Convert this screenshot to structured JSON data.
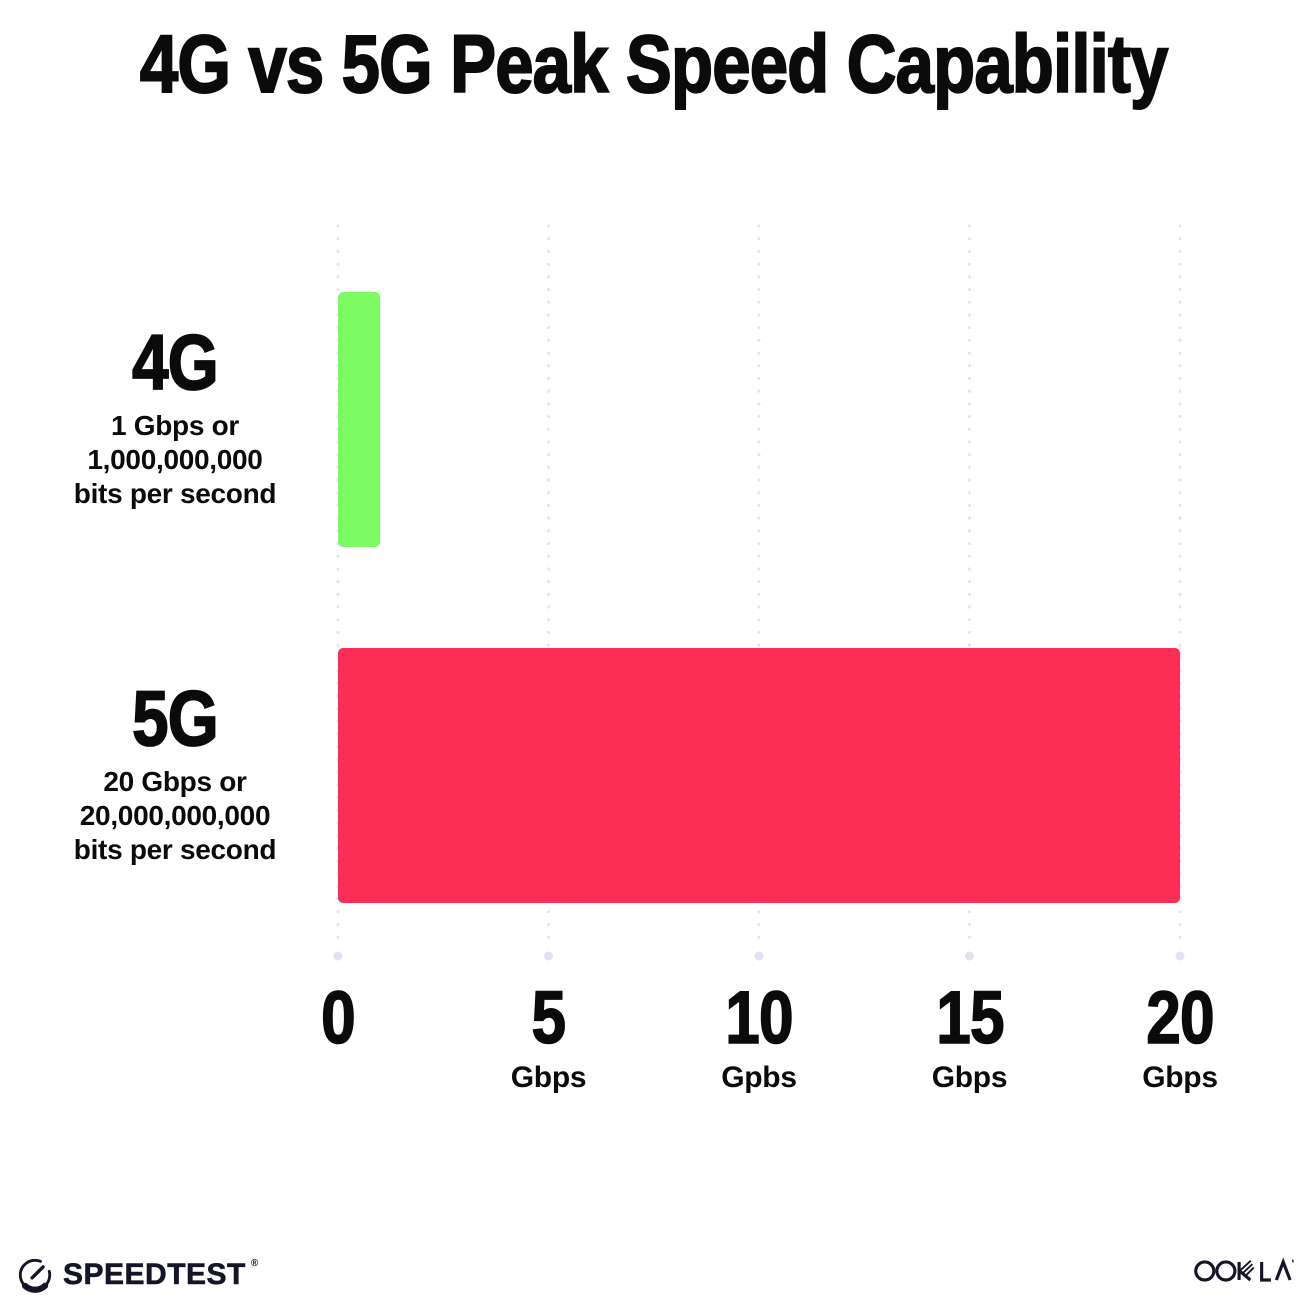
{
  "title": "4G vs 5G Peak Speed Capability",
  "chart_data": {
    "type": "bar",
    "orientation": "horizontal",
    "title": "4G vs 5G Peak Speed Capability",
    "categories": [
      "4G",
      "5G"
    ],
    "values": [
      1,
      20
    ],
    "value_unit": "Gbps",
    "xlim": [
      0,
      20
    ],
    "grid": "vertical-dotted",
    "legend": "none",
    "bars": [
      {
        "label": "4G",
        "value": 1,
        "color": "#7CFB62",
        "sublabel": [
          "1 Gbps or",
          "1,000,000,000",
          "bits per second"
        ]
      },
      {
        "label": "5G",
        "value": 20,
        "color": "#FC2E55",
        "sublabel": [
          "20 Gbps or",
          "20,000,000,000",
          "bits per second"
        ]
      }
    ],
    "x_ticks": [
      {
        "value": "0",
        "unit": ""
      },
      {
        "value": "5",
        "unit": "Gbps"
      },
      {
        "value": "10",
        "unit": "Gpbs"
      },
      {
        "value": "15",
        "unit": "Gbps"
      },
      {
        "value": "20",
        "unit": "Gbps"
      }
    ]
  },
  "footer": {
    "left_brand": "SPEEDTEST",
    "left_trademark": "®",
    "right_brand": "OOKLA"
  },
  "colors": {
    "bar_4g": "#7CFB62",
    "bar_5g": "#FC2E55",
    "gridline_dot": "#E2E5EF",
    "gridline_end_dot": "#DFE3EF",
    "title_text": "#0B0B0C",
    "footer_text": "#141526"
  }
}
